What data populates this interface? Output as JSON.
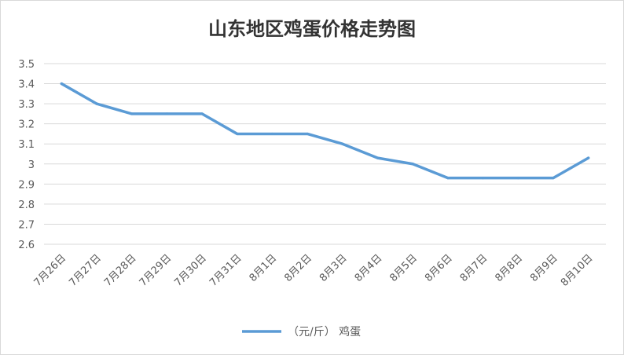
{
  "chart_data": {
    "type": "line",
    "title": "山东地区鸡蛋价格走势图",
    "xlabel": "",
    "ylabel": "",
    "categories": [
      "7月26日",
      "7月27日",
      "7月28日",
      "7月29日",
      "7月30日",
      "7月31日",
      "8月1日",
      "8月2日",
      "8月3日",
      "8月4日",
      "8月5日",
      "8月6日",
      "8月7日",
      "8月8日",
      "8月9日",
      "8月10日"
    ],
    "series": [
      {
        "name": "（元/斤） 鸡蛋",
        "color": "#5b9bd5",
        "values": [
          3.4,
          3.3,
          3.25,
          3.25,
          3.25,
          3.15,
          3.15,
          3.15,
          3.1,
          3.03,
          3.0,
          2.93,
          2.93,
          2.93,
          2.93,
          3.03
        ]
      }
    ],
    "ylim": [
      2.6,
      3.5
    ],
    "yticks": [
      "2.6",
      "2.7",
      "2.8",
      "2.9",
      "3",
      "3.1",
      "3.2",
      "3.3",
      "3.4",
      "3.5"
    ],
    "grid": true,
    "legend_position": "bottom"
  },
  "colors": {
    "gridline": "#d9d9d9",
    "axis": "#bfbfbf"
  }
}
